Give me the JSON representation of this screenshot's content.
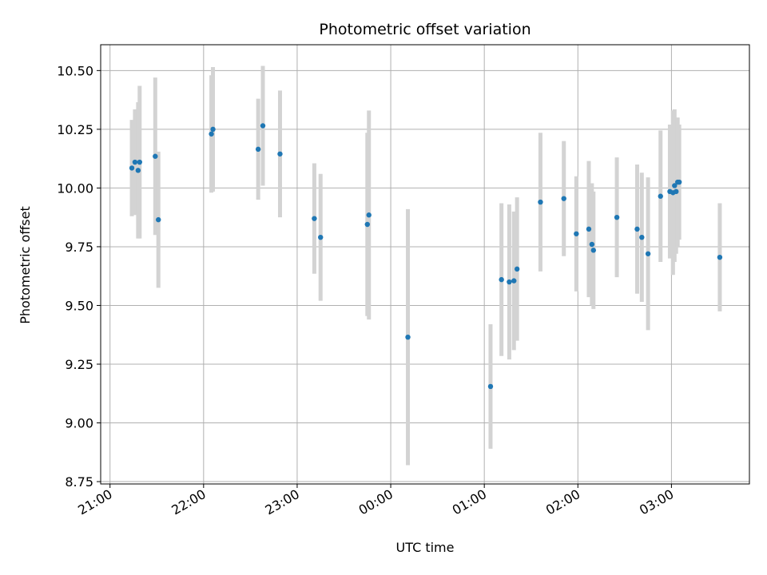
{
  "chart_data": {
    "type": "scatter",
    "title": "Photometric offset variation",
    "xlabel": "UTC time",
    "ylabel": "Photometric offset",
    "x_tick_labels": [
      "21:00",
      "22:00",
      "23:00",
      "00:00",
      "01:00",
      "02:00",
      "03:00"
    ],
    "y_tick_labels": [
      "8.75",
      "9.00",
      "9.25",
      "9.50",
      "9.75",
      "10.00",
      "10.25",
      "10.50"
    ],
    "x_ticks": [
      "21:00",
      "22:00",
      "23:00",
      "00:00",
      "01:00",
      "02:00",
      "03:00"
    ],
    "y_ticks": [
      8.75,
      9.0,
      9.25,
      9.5,
      9.75,
      10.0,
      10.25,
      10.5
    ],
    "xlim": [
      "20:54",
      "03:50"
    ],
    "ylim": [
      8.74,
      10.61
    ],
    "grid": true,
    "point_color": "#1f77b4",
    "errorbar_color": "#d3d3d3",
    "points": [
      {
        "x": "21:14",
        "y": 10.085,
        "yerr": 0.205
      },
      {
        "x": "21:16",
        "y": 10.11,
        "yerr": 0.225
      },
      {
        "x": "21:18",
        "y": 10.075,
        "yerr": 0.29
      },
      {
        "x": "21:19",
        "y": 10.11,
        "yerr": 0.325
      },
      {
        "x": "21:29",
        "y": 10.135,
        "yerr": 0.335
      },
      {
        "x": "21:31",
        "y": 9.865,
        "yerr": 0.29
      },
      {
        "x": "22:05",
        "y": 10.23,
        "yerr": 0.25
      },
      {
        "x": "22:06",
        "y": 10.25,
        "yerr": 0.265
      },
      {
        "x": "22:35",
        "y": 10.165,
        "yerr": 0.215
      },
      {
        "x": "22:38",
        "y": 10.265,
        "yerr": 0.255
      },
      {
        "x": "22:49",
        "y": 10.145,
        "yerr": 0.27
      },
      {
        "x": "23:11",
        "y": 9.87,
        "yerr": 0.235
      },
      {
        "x": "23:15",
        "y": 9.79,
        "yerr": 0.27
      },
      {
        "x": "23:45",
        "y": 9.845,
        "yerr": 0.39
      },
      {
        "x": "23:46",
        "y": 9.885,
        "yerr": 0.445
      },
      {
        "x": "00:11",
        "y": 9.365,
        "yerr": 0.545
      },
      {
        "x": "01:04",
        "y": 9.155,
        "yerr": 0.265
      },
      {
        "x": "01:11",
        "y": 9.61,
        "yerr": 0.325
      },
      {
        "x": "01:16",
        "y": 9.6,
        "yerr": 0.33
      },
      {
        "x": "01:19",
        "y": 9.605,
        "yerr": 0.295
      },
      {
        "x": "01:21",
        "y": 9.655,
        "yerr": 0.305
      },
      {
        "x": "01:36",
        "y": 9.94,
        "yerr": 0.295
      },
      {
        "x": "01:51",
        "y": 9.955,
        "yerr": 0.245
      },
      {
        "x": "01:59",
        "y": 9.805,
        "yerr": 0.245
      },
      {
        "x": "02:07",
        "y": 9.825,
        "yerr": 0.29
      },
      {
        "x": "02:09",
        "y": 9.76,
        "yerr": 0.26
      },
      {
        "x": "02:10",
        "y": 9.735,
        "yerr": 0.25
      },
      {
        "x": "02:25",
        "y": 9.875,
        "yerr": 0.255
      },
      {
        "x": "02:38",
        "y": 9.825,
        "yerr": 0.275
      },
      {
        "x": "02:41",
        "y": 9.79,
        "yerr": 0.275
      },
      {
        "x": "02:45",
        "y": 9.72,
        "yerr": 0.325
      },
      {
        "x": "02:53",
        "y": 9.965,
        "yerr": 0.28
      },
      {
        "x": "02:59",
        "y": 9.985,
        "yerr": 0.285
      },
      {
        "x": "03:01",
        "y": 9.98,
        "yerr": 0.35
      },
      {
        "x": "03:02",
        "y": 10.01,
        "yerr": 0.325
      },
      {
        "x": "03:03",
        "y": 9.985,
        "yerr": 0.265
      },
      {
        "x": "03:04",
        "y": 10.025,
        "yerr": 0.275
      },
      {
        "x": "03:05",
        "y": 10.025,
        "yerr": 0.245
      },
      {
        "x": "03:31",
        "y": 9.705,
        "yerr": 0.23
      }
    ]
  }
}
